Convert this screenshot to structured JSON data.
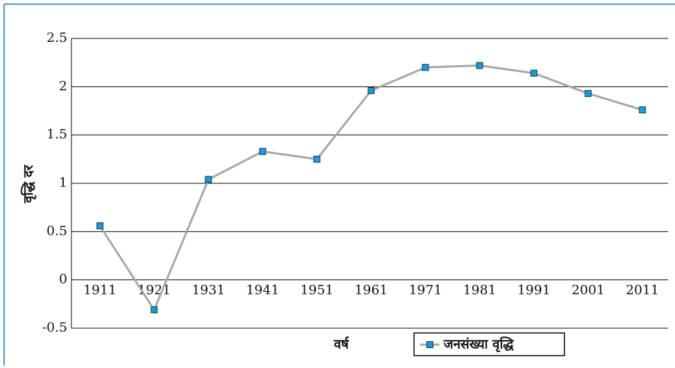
{
  "chart_data": {
    "type": "line",
    "x_label": "वर्ष",
    "y_label": "वृद्धि दर",
    "categories": [
      "1911",
      "1921",
      "1931",
      "1941",
      "1951",
      "1961",
      "1971",
      "1981",
      "1991",
      "2001",
      "2011"
    ],
    "series": [
      {
        "name": "जनसंख्या वृद्धि",
        "color": "#a6a6a6",
        "marker_color": "#1e9bd7",
        "values": [
          0.56,
          -0.31,
          1.04,
          1.33,
          1.25,
          1.96,
          2.2,
          2.22,
          2.14,
          1.93,
          1.76
        ]
      }
    ],
    "ylim": [
      -0.5,
      2.5
    ],
    "yticks": [
      -0.5,
      0,
      0.5,
      1,
      1.5,
      2,
      2.5
    ],
    "grid": true,
    "legend": "bottom"
  }
}
